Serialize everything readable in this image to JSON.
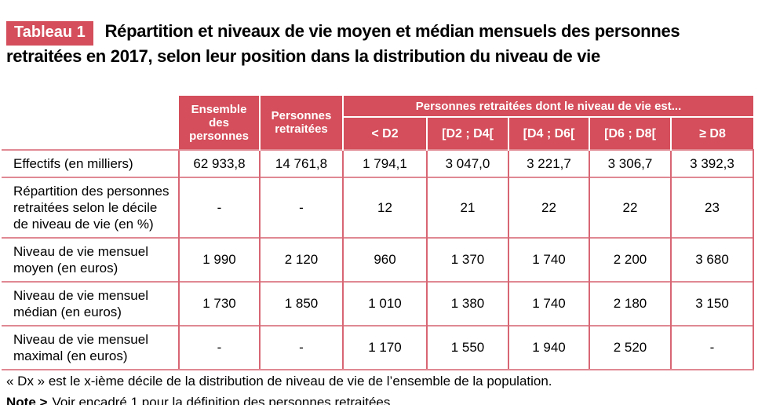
{
  "title": {
    "badge": "Tableau 1",
    "text": "Répartition et niveaux de vie moyen et médian mensuels des personnes retraitées en 2017, selon leur position dans la distribution du niveau de vie"
  },
  "colors": {
    "accent_red": "#d44e5b",
    "grid_vertical_red": "#d86674",
    "grid_horizontal_pink": "#e08993"
  },
  "chart_data": {
    "type": "table",
    "title": "Répartition et niveaux de vie moyen et médian mensuels des personnes retraitées en 2017, selon leur position dans la distribution du niveau de vie",
    "header": {
      "ensemble": "Ensemble\ndes\npersonnes",
      "retraitees": "Personnes\nretraitées",
      "group": "Personnes retraitées dont le niveau de vie est...",
      "deciles": [
        "< D2",
        "[D2 ; D4[",
        "[D4 ; D6[",
        "[D6 ; D8[",
        "≥ D8"
      ]
    },
    "rows": [
      {
        "label": "Effectifs (en milliers)",
        "values": [
          "62 933,8",
          "14 761,8",
          "1 794,1",
          "3 047,0",
          "3 221,7",
          "3 306,7",
          "3 392,3"
        ]
      },
      {
        "label": "Répartition des personnes\nretraitées selon le décile\nde niveau de vie (en %)",
        "values": [
          "-",
          "-",
          "12",
          "21",
          "22",
          "22",
          "23"
        ]
      },
      {
        "label": "Niveau de vie mensuel\nmoyen (en euros)",
        "values": [
          "1 990",
          "2 120",
          "960",
          "1 370",
          "1 740",
          "2 200",
          "3 680"
        ]
      },
      {
        "label": "Niveau de vie mensuel\nmédian (en euros)",
        "values": [
          "1 730",
          "1 850",
          "1 010",
          "1 380",
          "1 740",
          "2 180",
          "3 150"
        ]
      },
      {
        "label": "Niveau de vie mensuel\nmaximal  (en euros)",
        "values": [
          "-",
          "-",
          "1 170",
          "1 550",
          "1 940",
          "2 520",
          "-"
        ]
      }
    ]
  },
  "footnotes": {
    "definition": "« Dx » est le x-ième décile de la distribution de niveau de vie de l’ensemble de la population.",
    "note_label": "Note >",
    "note_text": "Voir encadré 1 pour la définition des personnes retraitées."
  }
}
